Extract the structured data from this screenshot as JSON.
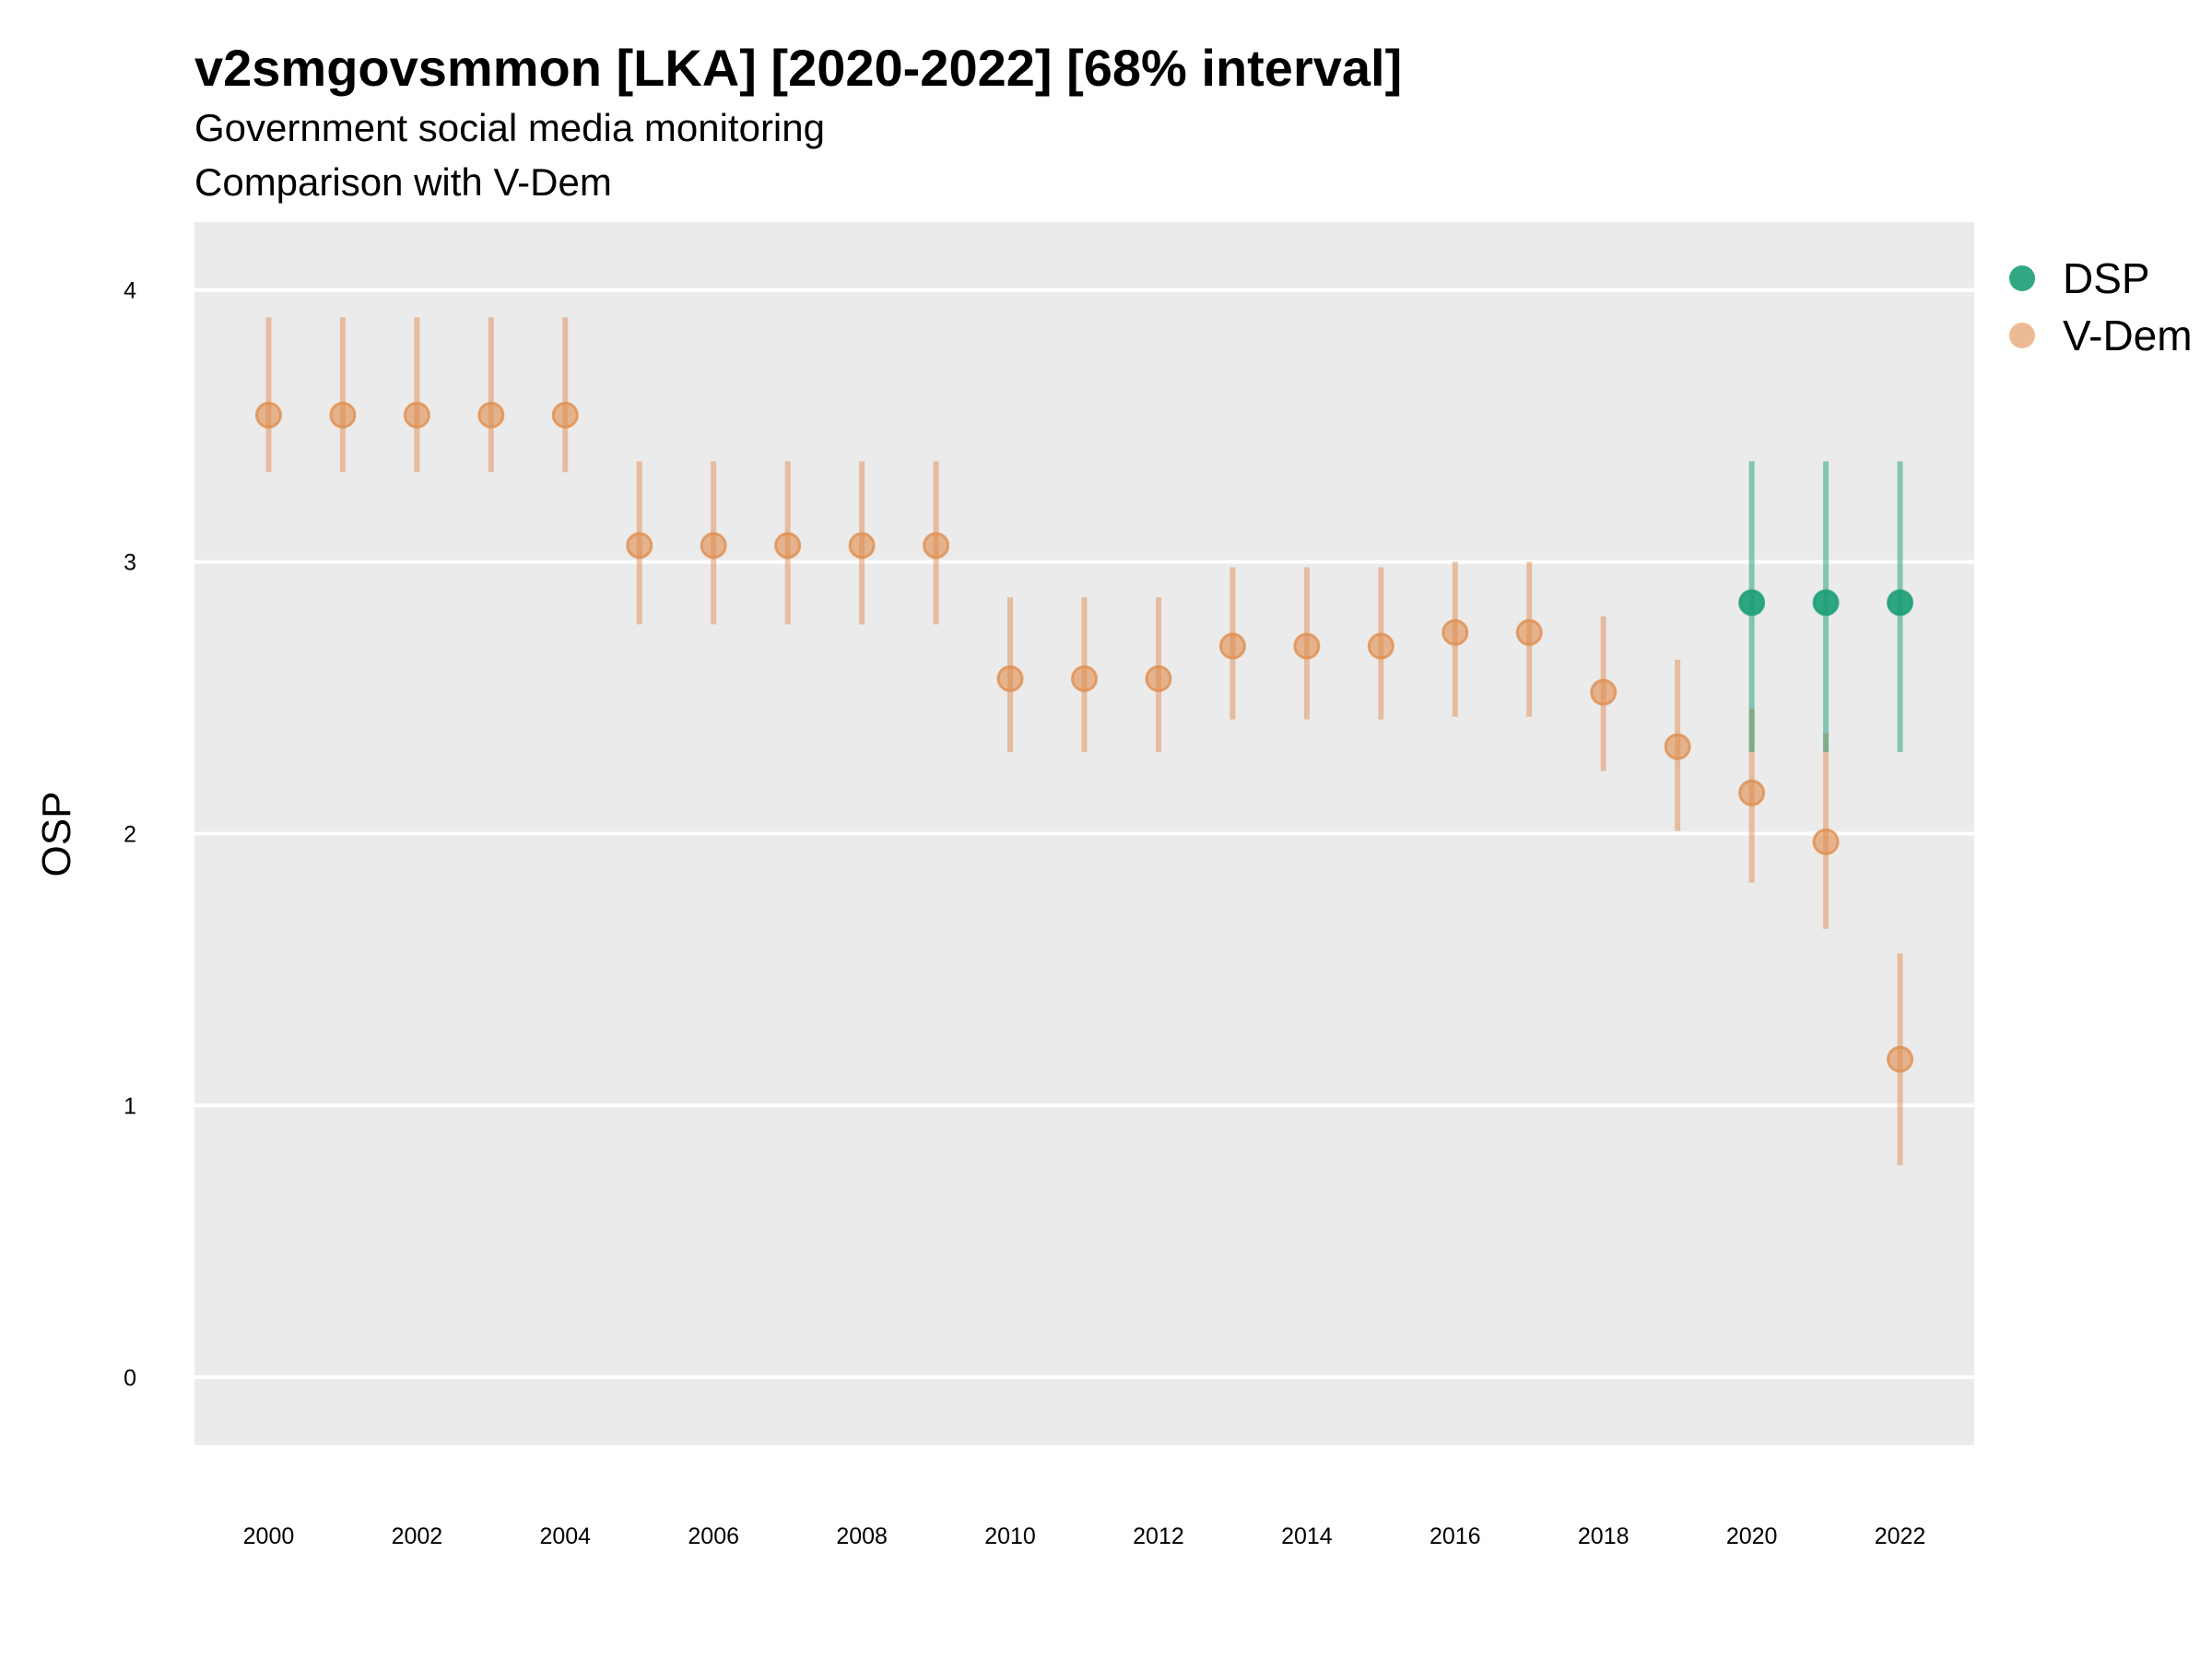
{
  "title": "v2smgovsmmon [LKA] [2020-2022] [68% interval]",
  "subtitle": "Government social media monitoring",
  "subtitle2": "Comparison with V-Dem",
  "chart_data": {
    "type": "scatter",
    "title": "v2smgovsmmon [LKA] [2020-2022] [68% interval]",
    "subtitle": "Government social media monitoring",
    "xlabel": "",
    "ylabel": "OSP",
    "xlim": [
      1999.0,
      2023.0
    ],
    "ylim": [
      -0.25,
      4.25
    ],
    "x_ticks": [
      "2000",
      "2002",
      "2004",
      "2006",
      "2008",
      "2010",
      "2012",
      "2014",
      "2016",
      "2018",
      "2020",
      "2022"
    ],
    "y_ticks": [
      "0",
      "1",
      "2",
      "3",
      "4"
    ],
    "grid": true,
    "legend_position": "right",
    "series": [
      {
        "name": "V-Dem",
        "color": "#E08E4F",
        "points": [
          {
            "x": 2000,
            "y": 3.54,
            "low": 3.33,
            "high": 3.9
          },
          {
            "x": 2001,
            "y": 3.54,
            "low": 3.33,
            "high": 3.9
          },
          {
            "x": 2002,
            "y": 3.54,
            "low": 3.33,
            "high": 3.9
          },
          {
            "x": 2003,
            "y": 3.54,
            "low": 3.33,
            "high": 3.9
          },
          {
            "x": 2004,
            "y": 3.54,
            "low": 3.33,
            "high": 3.9
          },
          {
            "x": 2005,
            "y": 3.06,
            "low": 2.77,
            "high": 3.37
          },
          {
            "x": 2006,
            "y": 3.06,
            "low": 2.77,
            "high": 3.37
          },
          {
            "x": 2007,
            "y": 3.06,
            "low": 2.77,
            "high": 3.37
          },
          {
            "x": 2008,
            "y": 3.06,
            "low": 2.77,
            "high": 3.37
          },
          {
            "x": 2009,
            "y": 3.06,
            "low": 2.77,
            "high": 3.37
          },
          {
            "x": 2010,
            "y": 2.57,
            "low": 2.3,
            "high": 2.87
          },
          {
            "x": 2011,
            "y": 2.57,
            "low": 2.3,
            "high": 2.87
          },
          {
            "x": 2012,
            "y": 2.57,
            "low": 2.3,
            "high": 2.87
          },
          {
            "x": 2013,
            "y": 2.69,
            "low": 2.42,
            "high": 2.98
          },
          {
            "x": 2014,
            "y": 2.69,
            "low": 2.42,
            "high": 2.98
          },
          {
            "x": 2015,
            "y": 2.69,
            "low": 2.42,
            "high": 2.98
          },
          {
            "x": 2016,
            "y": 2.74,
            "low": 2.43,
            "high": 3.0
          },
          {
            "x": 2017,
            "y": 2.74,
            "low": 2.43,
            "high": 3.0
          },
          {
            "x": 2018,
            "y": 2.52,
            "low": 2.23,
            "high": 2.8
          },
          {
            "x": 2019,
            "y": 2.32,
            "low": 2.01,
            "high": 2.64
          },
          {
            "x": 2020,
            "y": 2.15,
            "low": 1.82,
            "high": 2.46
          },
          {
            "x": 2021,
            "y": 1.97,
            "low": 1.65,
            "high": 2.37
          },
          {
            "x": 2022,
            "y": 1.17,
            "low": 0.78,
            "high": 1.56
          }
        ]
      },
      {
        "name": "DSP",
        "color": "#1B9E77",
        "points": [
          {
            "x": 2020,
            "y": 2.85,
            "low": 2.3,
            "high": 3.37
          },
          {
            "x": 2021,
            "y": 2.85,
            "low": 2.3,
            "high": 3.37
          },
          {
            "x": 2022,
            "y": 2.85,
            "low": 2.3,
            "high": 3.37
          }
        ]
      }
    ],
    "legend": [
      {
        "name": "DSP",
        "color": "#1B9E77"
      },
      {
        "name": "V-Dem",
        "color": "#E08E4F"
      }
    ]
  }
}
